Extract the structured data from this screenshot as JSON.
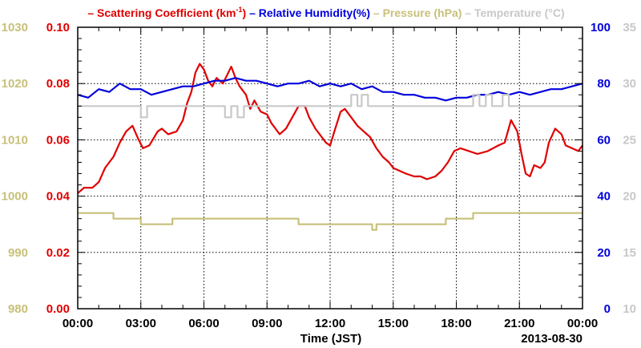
{
  "chart_data": {
    "type": "line",
    "legend": [
      {
        "prefix": "–",
        "text": "Scattering Coefficient (km",
        "sup": "-1",
        "suffix": ")",
        "color": "#e00000"
      },
      {
        "prefix": "–",
        "text": "Relative Humidity(%)",
        "color": "#0000dd"
      },
      {
        "prefix": "–",
        "text": "Pressure (hPa)",
        "color": "#c8c07a"
      },
      {
        "prefix": "–",
        "text": "Temperature (°C)",
        "color": "#c8c8c8"
      }
    ],
    "xlabel": "Time (JST)",
    "date_label": "2013-08-30",
    "x_ticks": [
      "00:00",
      "03:00",
      "06:00",
      "09:00",
      "12:00",
      "15:00",
      "18:00",
      "21:00",
      "00:00"
    ],
    "x_range_hours": [
      0,
      24
    ],
    "axes": {
      "scattering": {
        "ticks": [
          "0.00",
          "0.02",
          "0.04",
          "0.06",
          "0.08",
          "0.10"
        ],
        "range": [
          0,
          0.1
        ],
        "color": "#e00000"
      },
      "pressure": {
        "ticks": [
          "980",
          "990",
          "1000",
          "1010",
          "1020",
          "1030"
        ],
        "range": [
          980,
          1030
        ],
        "color": "#c8c07a"
      },
      "humidity": {
        "ticks": [
          "0",
          "20",
          "40",
          "60",
          "80",
          "100"
        ],
        "range": [
          0,
          100
        ],
        "color": "#0000dd"
      },
      "temperature": {
        "ticks": [
          "10",
          "15",
          "20",
          "25",
          "30",
          "35"
        ],
        "range": [
          10,
          35
        ],
        "color": "#c8c8c8"
      }
    },
    "grid": true,
    "series": [
      {
        "name": "Scattering Coefficient",
        "axis": "scattering",
        "color": "#e00000",
        "points": [
          [
            0,
            0.041
          ],
          [
            0.3,
            0.043
          ],
          [
            0.7,
            0.043
          ],
          [
            1.0,
            0.045
          ],
          [
            1.3,
            0.05
          ],
          [
            1.7,
            0.054
          ],
          [
            2.0,
            0.059
          ],
          [
            2.3,
            0.063
          ],
          [
            2.6,
            0.065
          ],
          [
            2.9,
            0.06
          ],
          [
            3.1,
            0.057
          ],
          [
            3.4,
            0.058
          ],
          [
            3.8,
            0.063
          ],
          [
            4.0,
            0.064
          ],
          [
            4.3,
            0.062
          ],
          [
            4.7,
            0.063
          ],
          [
            5.0,
            0.067
          ],
          [
            5.2,
            0.073
          ],
          [
            5.4,
            0.077
          ],
          [
            5.6,
            0.084
          ],
          [
            5.8,
            0.087
          ],
          [
            6.0,
            0.085
          ],
          [
            6.2,
            0.081
          ],
          [
            6.4,
            0.079
          ],
          [
            6.6,
            0.082
          ],
          [
            6.9,
            0.08
          ],
          [
            7.1,
            0.083
          ],
          [
            7.3,
            0.086
          ],
          [
            7.5,
            0.082
          ],
          [
            7.7,
            0.079
          ],
          [
            8.0,
            0.076
          ],
          [
            8.2,
            0.071
          ],
          [
            8.4,
            0.074
          ],
          [
            8.7,
            0.07
          ],
          [
            9.0,
            0.069
          ],
          [
            9.2,
            0.066
          ],
          [
            9.4,
            0.064
          ],
          [
            9.6,
            0.062
          ],
          [
            9.9,
            0.064
          ],
          [
            10.2,
            0.068
          ],
          [
            10.5,
            0.072
          ],
          [
            10.8,
            0.072
          ],
          [
            11.0,
            0.068
          ],
          [
            11.3,
            0.064
          ],
          [
            11.6,
            0.061
          ],
          [
            11.8,
            0.059
          ],
          [
            12.0,
            0.058
          ],
          [
            12.2,
            0.063
          ],
          [
            12.5,
            0.07
          ],
          [
            12.7,
            0.071
          ],
          [
            13.0,
            0.068
          ],
          [
            13.3,
            0.065
          ],
          [
            13.6,
            0.063
          ],
          [
            13.9,
            0.061
          ],
          [
            14.2,
            0.057
          ],
          [
            14.5,
            0.054
          ],
          [
            14.8,
            0.052
          ],
          [
            15.0,
            0.05
          ],
          [
            15.3,
            0.049
          ],
          [
            15.6,
            0.048
          ],
          [
            16.0,
            0.047
          ],
          [
            16.3,
            0.047
          ],
          [
            16.6,
            0.046
          ],
          [
            17.0,
            0.047
          ],
          [
            17.3,
            0.049
          ],
          [
            17.6,
            0.052
          ],
          [
            17.9,
            0.056
          ],
          [
            18.2,
            0.057
          ],
          [
            18.6,
            0.056
          ],
          [
            19.0,
            0.055
          ],
          [
            19.5,
            0.056
          ],
          [
            20.0,
            0.058
          ],
          [
            20.3,
            0.059
          ],
          [
            20.6,
            0.067
          ],
          [
            20.9,
            0.063
          ],
          [
            21.1,
            0.055
          ],
          [
            21.3,
            0.048
          ],
          [
            21.5,
            0.047
          ],
          [
            21.7,
            0.051
          ],
          [
            22.0,
            0.05
          ],
          [
            22.2,
            0.052
          ],
          [
            22.4,
            0.059
          ],
          [
            22.7,
            0.064
          ],
          [
            23.0,
            0.062
          ],
          [
            23.2,
            0.058
          ],
          [
            23.5,
            0.057
          ],
          [
            23.8,
            0.056
          ],
          [
            24.0,
            0.058
          ]
        ]
      },
      {
        "name": "Relative Humidity",
        "axis": "humidity",
        "color": "#0000dd",
        "points": [
          [
            0,
            76
          ],
          [
            0.5,
            75
          ],
          [
            1.0,
            78
          ],
          [
            1.5,
            77
          ],
          [
            2.0,
            80
          ],
          [
            2.5,
            78
          ],
          [
            3.0,
            78
          ],
          [
            3.5,
            76
          ],
          [
            4.0,
            77
          ],
          [
            4.5,
            78
          ],
          [
            5.0,
            79
          ],
          [
            5.5,
            79
          ],
          [
            6.0,
            80
          ],
          [
            6.5,
            81
          ],
          [
            7.0,
            81
          ],
          [
            7.5,
            82
          ],
          [
            8.0,
            81
          ],
          [
            8.5,
            81
          ],
          [
            9.0,
            80
          ],
          [
            9.5,
            79
          ],
          [
            10.0,
            80
          ],
          [
            10.5,
            80
          ],
          [
            11.0,
            81
          ],
          [
            11.5,
            79
          ],
          [
            12.0,
            80
          ],
          [
            12.5,
            79
          ],
          [
            13.0,
            80
          ],
          [
            13.5,
            78
          ],
          [
            14.0,
            79
          ],
          [
            14.5,
            77
          ],
          [
            15.0,
            77
          ],
          [
            15.5,
            76
          ],
          [
            16.0,
            76
          ],
          [
            16.5,
            75
          ],
          [
            17.0,
            75
          ],
          [
            17.5,
            74
          ],
          [
            18.0,
            75
          ],
          [
            18.5,
            75
          ],
          [
            19.0,
            76
          ],
          [
            19.5,
            76
          ],
          [
            20.0,
            77
          ],
          [
            20.5,
            76
          ],
          [
            21.0,
            77
          ],
          [
            21.5,
            76
          ],
          [
            22.0,
            77
          ],
          [
            22.5,
            78
          ],
          [
            23.0,
            78
          ],
          [
            23.5,
            79
          ],
          [
            24.0,
            80
          ]
        ]
      },
      {
        "name": "Pressure",
        "axis": "pressure",
        "color": "#c8c07a",
        "points": [
          [
            0,
            997
          ],
          [
            1.7,
            997
          ],
          [
            1.7,
            996
          ],
          [
            3.0,
            996
          ],
          [
            3.0,
            995
          ],
          [
            4.5,
            995
          ],
          [
            4.5,
            996
          ],
          [
            10.5,
            996
          ],
          [
            10.5,
            995
          ],
          [
            14.0,
            995
          ],
          [
            14.0,
            994
          ],
          [
            14.2,
            994
          ],
          [
            14.2,
            995
          ],
          [
            17.5,
            995
          ],
          [
            17.5,
            996
          ],
          [
            18.8,
            996
          ],
          [
            18.8,
            997
          ],
          [
            24.0,
            997
          ]
        ]
      },
      {
        "name": "Temperature",
        "axis": "temperature",
        "color": "#c8c8c8",
        "points": [
          [
            0,
            28
          ],
          [
            3.0,
            28
          ],
          [
            3.0,
            27
          ],
          [
            3.3,
            27
          ],
          [
            3.3,
            28
          ],
          [
            7.0,
            28
          ],
          [
            7.0,
            27
          ],
          [
            7.3,
            27
          ],
          [
            7.3,
            28
          ],
          [
            7.6,
            28
          ],
          [
            7.6,
            27
          ],
          [
            7.9,
            27
          ],
          [
            7.9,
            28
          ],
          [
            13.0,
            28
          ],
          [
            13.0,
            29
          ],
          [
            13.3,
            29
          ],
          [
            13.3,
            28
          ],
          [
            13.5,
            28
          ],
          [
            13.5,
            29
          ],
          [
            13.8,
            29
          ],
          [
            13.8,
            28
          ],
          [
            18.8,
            28
          ],
          [
            18.8,
            29
          ],
          [
            19.1,
            29
          ],
          [
            19.1,
            28
          ],
          [
            19.4,
            28
          ],
          [
            19.4,
            29
          ],
          [
            19.7,
            29
          ],
          [
            19.7,
            28
          ],
          [
            20.2,
            28
          ],
          [
            20.2,
            29
          ],
          [
            20.5,
            29
          ],
          [
            20.5,
            28
          ],
          [
            24.0,
            28
          ]
        ]
      }
    ]
  }
}
